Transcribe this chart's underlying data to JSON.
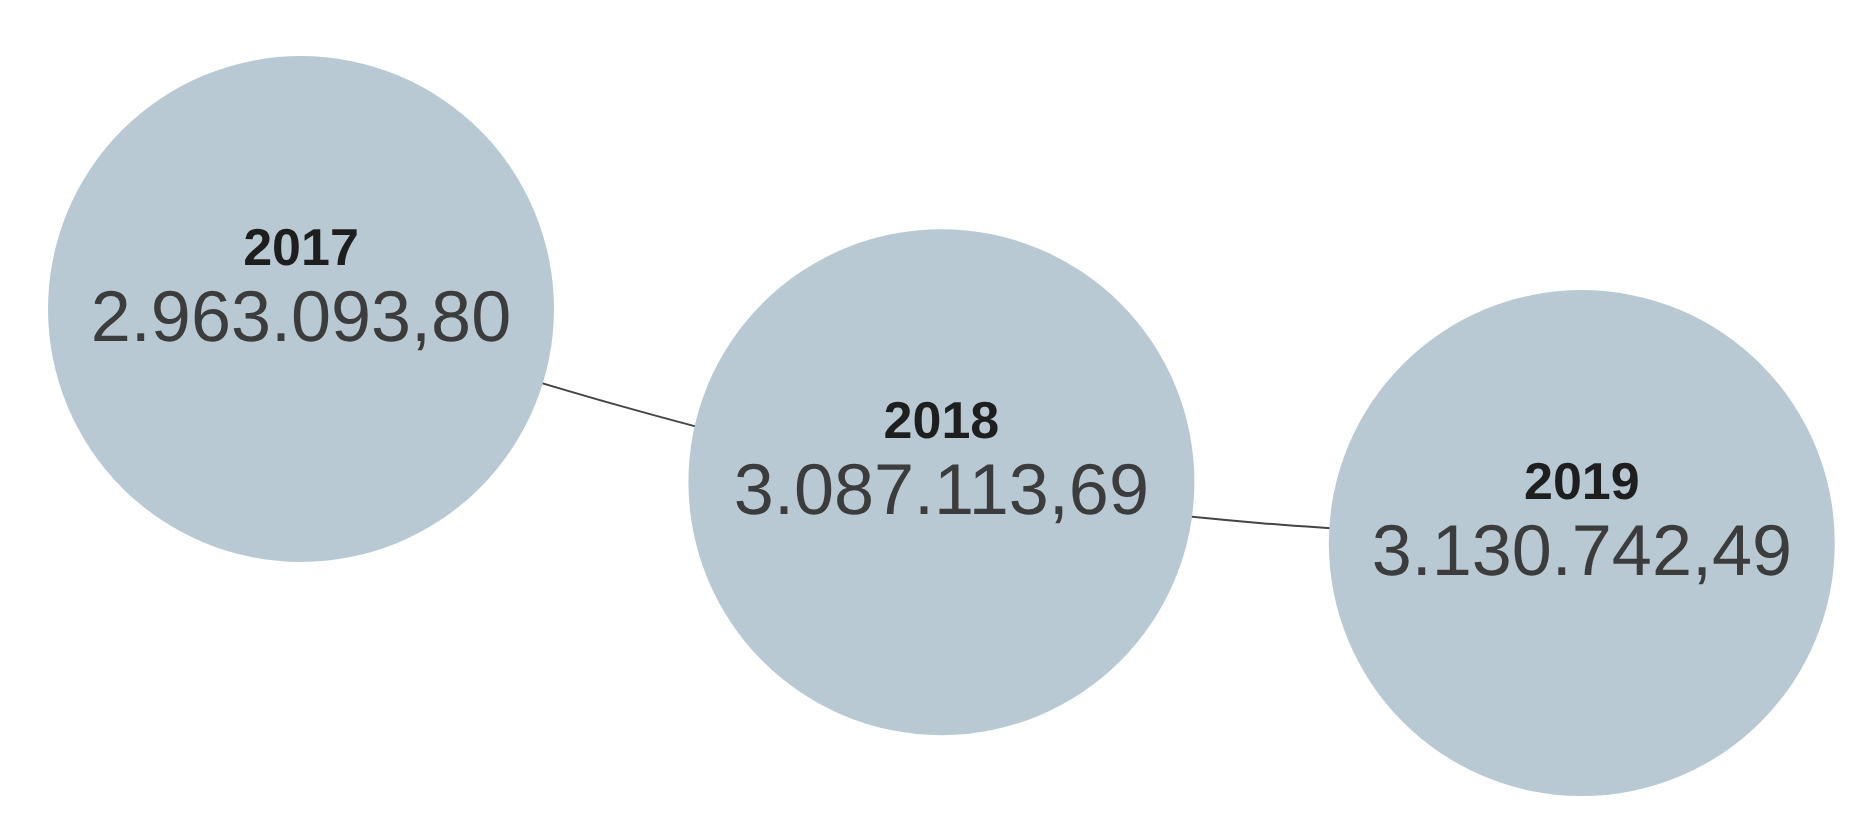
{
  "chart_data": {
    "type": "other",
    "categories": [
      "2017",
      "2018",
      "2019"
    ],
    "values": [
      2963093.8,
      3087113.69,
      3130742.49
    ],
    "value_labels": [
      "2.963.093,80",
      "3.087.113,69",
      "3.130.742,49"
    ],
    "color": "#b8c9d4"
  }
}
